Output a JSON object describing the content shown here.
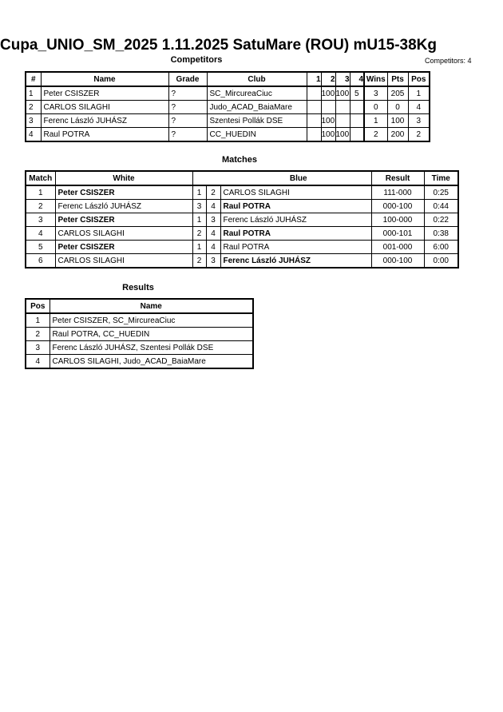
{
  "title": "Cupa_UNIO_SM_2025  1.11.2025  SatuMare (ROU)   mU15-38Kg",
  "competitors": {
    "heading": "Competitors",
    "count_label": "Competitors: 4",
    "headers": [
      "#",
      "Name",
      "Grade",
      "Club",
      "1",
      "2",
      "3",
      "4",
      "Wins",
      "Pts",
      "Pos"
    ],
    "rows": [
      {
        "num": "1",
        "name": "Peter CSISZER",
        "grade": "?",
        "club": "SC_MircureaCiuc",
        "s1": "",
        "s2": "100",
        "s3": "100",
        "s4": "5",
        "wins": "3",
        "pts": "205",
        "pos": "1"
      },
      {
        "num": "2",
        "name": "CARLOS SILAGHI",
        "grade": "?",
        "club": "Judo_ACAD_BaiaMare",
        "s1": "",
        "s2": "",
        "s3": "",
        "s4": "",
        "wins": "0",
        "pts": "0",
        "pos": "4"
      },
      {
        "num": "3",
        "name": "Ferenc László JUHÁSZ",
        "grade": "?",
        "club": "Szentesi Pollák DSE",
        "s1": "",
        "s2": "100",
        "s3": "",
        "s4": "",
        "wins": "1",
        "pts": "100",
        "pos": "3"
      },
      {
        "num": "4",
        "name": "Raul POTRA",
        "grade": "?",
        "club": "CC_HUEDIN",
        "s1": "",
        "s2": "100",
        "s3": "100",
        "s4": "",
        "wins": "2",
        "pts": "200",
        "pos": "2"
      }
    ]
  },
  "matches": {
    "heading": "Matches",
    "headers": [
      "Match",
      "White",
      "Blue",
      "Result",
      "Time"
    ],
    "rows": [
      {
        "match": "1",
        "white": "Peter CSISZER",
        "white_bold": true,
        "wn": "1",
        "bn": "2",
        "blue": "CARLOS SILAGHI",
        "blue_bold": false,
        "result": "111-000",
        "time": "0:25"
      },
      {
        "match": "2",
        "white": "Ferenc László JUHÁSZ",
        "white_bold": false,
        "wn": "3",
        "bn": "4",
        "blue": "Raul POTRA",
        "blue_bold": true,
        "result": "000-100",
        "time": "0:44"
      },
      {
        "match": "3",
        "white": "Peter CSISZER",
        "white_bold": true,
        "wn": "1",
        "bn": "3",
        "blue": "Ferenc László JUHÁSZ",
        "blue_bold": false,
        "result": "100-000",
        "time": "0:22"
      },
      {
        "match": "4",
        "white": "CARLOS SILAGHI",
        "white_bold": false,
        "wn": "2",
        "bn": "4",
        "blue": "Raul POTRA",
        "blue_bold": true,
        "result": "000-101",
        "time": "0:38"
      },
      {
        "match": "5",
        "white": "Peter CSISZER",
        "white_bold": true,
        "wn": "1",
        "bn": "4",
        "blue": "Raul POTRA",
        "blue_bold": false,
        "result": "001-000",
        "time": "6:00"
      },
      {
        "match": "6",
        "white": "CARLOS SILAGHI",
        "white_bold": false,
        "wn": "2",
        "bn": "3",
        "blue": "Ferenc László JUHÁSZ",
        "blue_bold": true,
        "result": "000-100",
        "time": "0:00"
      }
    ]
  },
  "results": {
    "heading": "Results",
    "headers": [
      "Pos",
      "Name"
    ],
    "rows": [
      {
        "pos": "1",
        "name": "Peter CSISZER, SC_MircureaCiuc"
      },
      {
        "pos": "2",
        "name": "Raul POTRA, CC_HUEDIN"
      },
      {
        "pos": "3",
        "name": "Ferenc László JUHÁSZ, Szentesi Pollák DSE"
      },
      {
        "pos": "4",
        "name": "CARLOS SILAGHI, Judo_ACAD_BaiaMare"
      }
    ]
  }
}
